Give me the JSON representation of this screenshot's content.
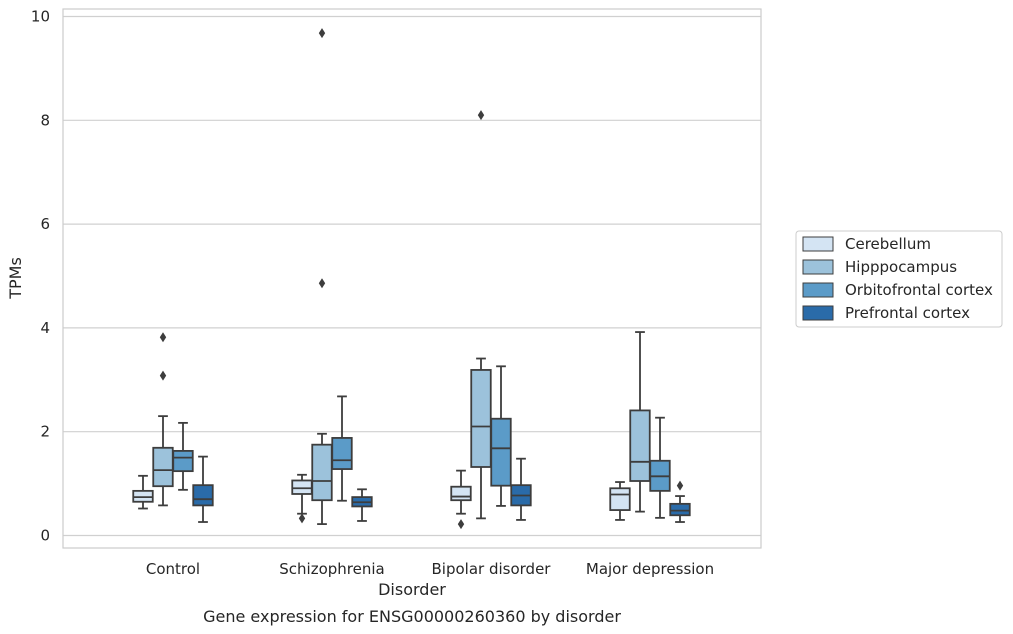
{
  "chart_data": {
    "type": "box",
    "title": "",
    "caption": "Gene expression for ENSG00000260360 by disorder",
    "xlabel": "Disorder",
    "ylabel": "TPMs",
    "ylim": [
      -0.25,
      10.15
    ],
    "yticks": [
      0,
      2,
      4,
      6,
      8,
      10
    ],
    "grid": "horizontal",
    "legend_placement": "right",
    "categories": [
      "Control",
      "Schizophrenia",
      "Bipolar disorder",
      "Major depression"
    ],
    "series": [
      {
        "name": "Cerebellum",
        "color": "#d4e4f3",
        "boxes": [
          {
            "whislo": 0.52,
            "q1": 0.65,
            "med": 0.74,
            "q3": 0.86,
            "whishi": 1.15,
            "fliers": []
          },
          {
            "whislo": 0.42,
            "q1": 0.8,
            "med": 0.91,
            "q3": 1.06,
            "whishi": 1.17,
            "fliers": [
              0.33
            ]
          },
          {
            "whislo": 0.42,
            "q1": 0.68,
            "med": 0.75,
            "q3": 0.94,
            "whishi": 1.25,
            "fliers": [
              0.22
            ]
          },
          {
            "whislo": 0.3,
            "q1": 0.49,
            "med": 0.79,
            "q3": 0.91,
            "whishi": 1.03,
            "fliers": []
          }
        ]
      },
      {
        "name": "Hipppocampus",
        "color": "#9cc2db",
        "boxes": [
          {
            "whislo": 0.58,
            "q1": 0.95,
            "med": 1.26,
            "q3": 1.69,
            "whishi": 2.3,
            "fliers": [
              3.08,
              3.82
            ]
          },
          {
            "whislo": 0.22,
            "q1": 0.68,
            "med": 1.05,
            "q3": 1.75,
            "whishi": 1.96,
            "fliers": [
              4.86,
              9.68
            ]
          },
          {
            "whislo": 0.33,
            "q1": 1.32,
            "med": 2.1,
            "q3": 3.19,
            "whishi": 3.41,
            "fliers": [
              8.1
            ]
          },
          {
            "whislo": 0.46,
            "q1": 1.05,
            "med": 1.42,
            "q3": 2.41,
            "whishi": 3.92,
            "fliers": []
          }
        ]
      },
      {
        "name": "Orbitofrontal cortex",
        "color": "#5b9bc8",
        "boxes": [
          {
            "whislo": 0.88,
            "q1": 1.24,
            "med": 1.5,
            "q3": 1.63,
            "whishi": 2.17,
            "fliers": []
          },
          {
            "whislo": 0.67,
            "q1": 1.28,
            "med": 1.45,
            "q3": 1.88,
            "whishi": 2.68,
            "fliers": []
          },
          {
            "whislo": 0.57,
            "q1": 0.96,
            "med": 1.68,
            "q3": 2.25,
            "whishi": 3.26,
            "fliers": []
          },
          {
            "whislo": 0.34,
            "q1": 0.86,
            "med": 1.14,
            "q3": 1.44,
            "whishi": 2.27,
            "fliers": []
          }
        ]
      },
      {
        "name": "Prefrontal cortex",
        "color": "#2a6ba9",
        "boxes": [
          {
            "whislo": 0.26,
            "q1": 0.58,
            "med": 0.7,
            "q3": 0.97,
            "whishi": 1.52,
            "fliers": []
          },
          {
            "whislo": 0.28,
            "q1": 0.56,
            "med": 0.64,
            "q3": 0.74,
            "whishi": 0.89,
            "fliers": []
          },
          {
            "whislo": 0.3,
            "q1": 0.58,
            "med": 0.77,
            "q3": 0.97,
            "whishi": 1.48,
            "fliers": []
          },
          {
            "whislo": 0.26,
            "q1": 0.39,
            "med": 0.48,
            "q3": 0.61,
            "whishi": 0.76,
            "fliers": [
              0.96
            ]
          }
        ]
      }
    ]
  }
}
